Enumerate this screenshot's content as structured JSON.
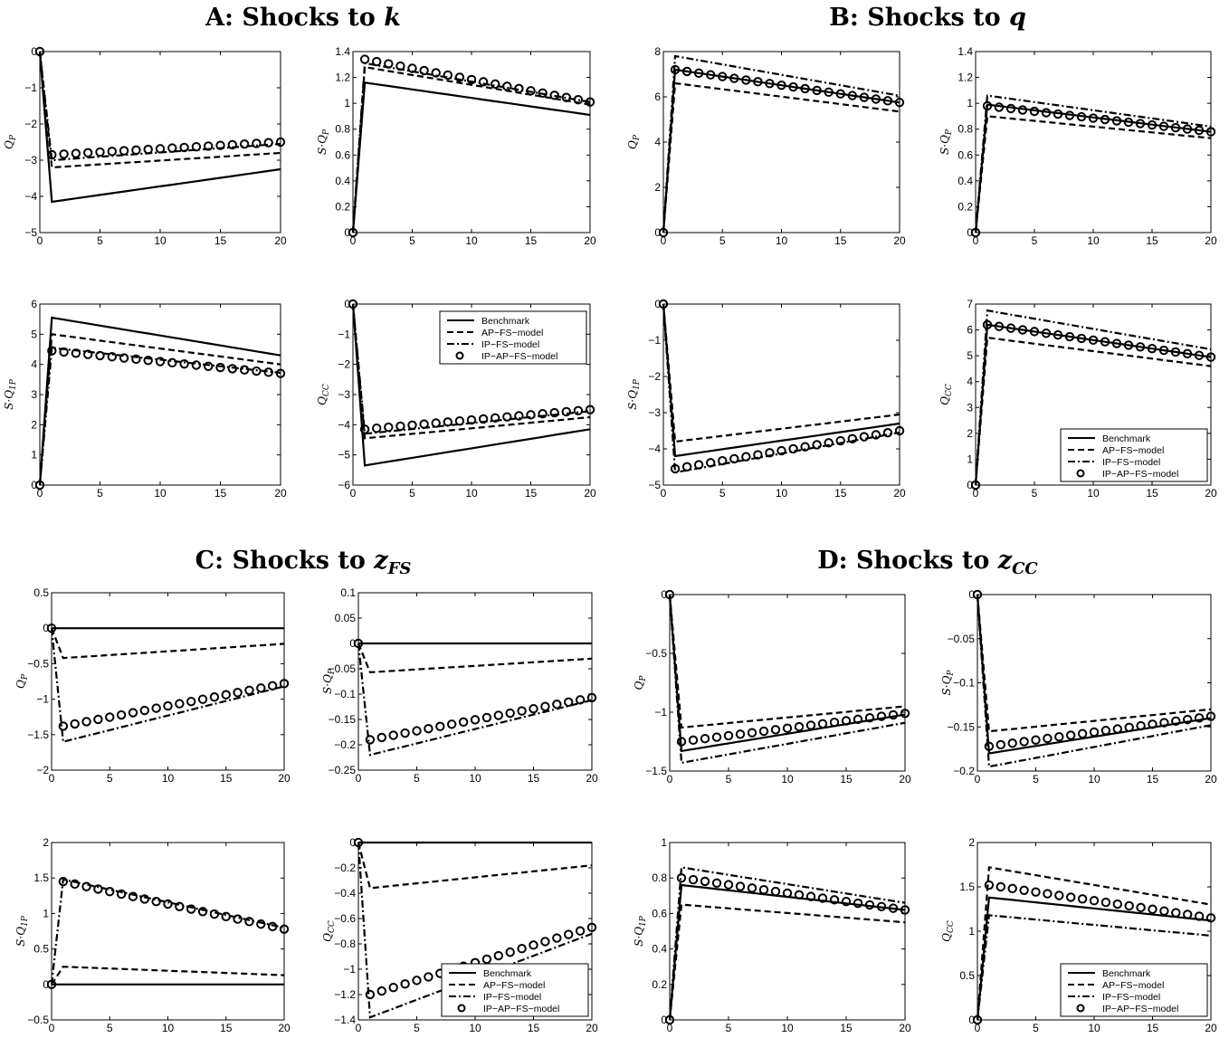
{
  "legend_entries": [
    "Benchmark",
    "AP−FS−model",
    "IP−FS−model",
    "IP−AP−FS−model"
  ],
  "series_styles": [
    {
      "name": "Benchmark",
      "style": "solid"
    },
    {
      "name": "AP−FS−model",
      "style": "dashed"
    },
    {
      "name": "IP−FS−model",
      "style": "dash-dot"
    },
    {
      "name": "IP−AP−FS−model",
      "style": "circles"
    }
  ],
  "colors": {
    "line": "#000000",
    "background": "#ffffff"
  },
  "panel_groups": [
    {
      "id": "A",
      "prefix": "A: Shocks to ",
      "var": "k",
      "sub": ""
    },
    {
      "id": "B",
      "prefix": "B: Shocks to ",
      "var": "q",
      "sub": ""
    },
    {
      "id": "C",
      "prefix": "C: Shocks to ",
      "var": "z",
      "sub": "FS"
    },
    {
      "id": "D",
      "prefix": "D: Shocks to ",
      "var": "z",
      "sub": "CC"
    }
  ],
  "chart_data": [
    {
      "group": "A",
      "type": "line",
      "ylabel": "Q_P",
      "xlim": [
        0,
        20
      ],
      "ylim": [
        -5,
        0
      ],
      "xticks": [
        0,
        5,
        10,
        15,
        20
      ],
      "yticks": [
        -5,
        -4,
        -3,
        -2,
        -1,
        0
      ],
      "legend": null,
      "series": [
        {
          "name": "Benchmark",
          "start": 0,
          "peak": -4.15,
          "end": -3.25
        },
        {
          "name": "AP−FS−model",
          "start": 0,
          "peak": -3.2,
          "end": -2.8
        },
        {
          "name": "IP−FS−model",
          "start": 0,
          "peak": -3.0,
          "end": -2.55
        },
        {
          "name": "IP−AP−FS−model",
          "start": 0,
          "peak": -2.85,
          "end": -2.5
        }
      ]
    },
    {
      "group": "A",
      "type": "line",
      "ylabel": "S·Q_P",
      "xlim": [
        0,
        20
      ],
      "ylim": [
        0,
        1.4
      ],
      "xticks": [
        0,
        5,
        10,
        15,
        20
      ],
      "yticks": [
        0,
        0.2,
        0.4,
        0.6,
        0.8,
        1,
        1.2,
        1.4
      ],
      "legend": null,
      "series": [
        {
          "name": "Benchmark",
          "start": 0,
          "peak": 1.16,
          "end": 0.91
        },
        {
          "name": "AP−FS−model",
          "start": 0,
          "peak": 1.28,
          "end": 0.99
        },
        {
          "name": "IP−FS−model",
          "start": 0,
          "peak": 1.31,
          "end": 1.01
        },
        {
          "name": "IP−AP−FS−model",
          "start": 0,
          "peak": 1.34,
          "end": 1.01
        }
      ]
    },
    {
      "group": "A",
      "type": "line",
      "ylabel": "S·Q_1P",
      "xlim": [
        0,
        20
      ],
      "ylim": [
        0,
        6
      ],
      "xticks": [
        0,
        5,
        10,
        15,
        20
      ],
      "yticks": [
        0,
        1,
        2,
        3,
        4,
        5,
        6
      ],
      "legend": null,
      "series": [
        {
          "name": "Benchmark",
          "start": 0,
          "peak": 5.55,
          "end": 4.3
        },
        {
          "name": "AP−FS−model",
          "start": 0,
          "peak": 5.0,
          "end": 4.0
        },
        {
          "name": "IP−FS−model",
          "start": 0,
          "peak": 4.55,
          "end": 3.72
        },
        {
          "name": "IP−AP−FS−model",
          "start": 0,
          "peak": 4.45,
          "end": 3.7
        }
      ]
    },
    {
      "group": "A",
      "type": "line",
      "ylabel": "Q_CC",
      "xlim": [
        0,
        20
      ],
      "ylim": [
        -6,
        0
      ],
      "xticks": [
        0,
        5,
        10,
        15,
        20
      ],
      "yticks": [
        -6,
        -5,
        -4,
        -3,
        -2,
        -1,
        0
      ],
      "legend": "top-right",
      "series": [
        {
          "name": "Benchmark",
          "start": 0,
          "peak": -5.35,
          "end": -4.15
        },
        {
          "name": "AP−FS−model",
          "start": 0,
          "peak": -4.45,
          "end": -3.75
        },
        {
          "name": "IP−FS−model",
          "start": 0,
          "peak": -4.3,
          "end": -3.55
        },
        {
          "name": "IP−AP−FS−model",
          "start": 0,
          "peak": -4.15,
          "end": -3.5
        }
      ]
    },
    {
      "group": "B",
      "type": "line",
      "ylabel": "Q_P",
      "xlim": [
        0,
        20
      ],
      "ylim": [
        0,
        8
      ],
      "xticks": [
        0,
        5,
        10,
        15,
        20
      ],
      "yticks": [
        0,
        2,
        4,
        6,
        8
      ],
      "legend": null,
      "series": [
        {
          "name": "Benchmark",
          "start": 0,
          "peak": 7.2,
          "end": 5.75
        },
        {
          "name": "AP−FS−model",
          "start": 0,
          "peak": 6.6,
          "end": 5.35
        },
        {
          "name": "IP−FS−model",
          "start": 0,
          "peak": 7.8,
          "end": 6.05
        },
        {
          "name": "IP−AP−FS−model",
          "start": 0,
          "peak": 7.2,
          "end": 5.75
        }
      ]
    },
    {
      "group": "B",
      "type": "line",
      "ylabel": "S·Q_P",
      "xlim": [
        0,
        20
      ],
      "ylim": [
        0,
        1.4
      ],
      "xticks": [
        0,
        5,
        10,
        15,
        20
      ],
      "yticks": [
        0,
        0.2,
        0.4,
        0.6,
        0.8,
        1,
        1.2,
        1.4
      ],
      "legend": null,
      "series": [
        {
          "name": "Benchmark",
          "start": 0,
          "peak": 0.99,
          "end": 0.78
        },
        {
          "name": "AP−FS−model",
          "start": 0,
          "peak": 0.9,
          "end": 0.73
        },
        {
          "name": "IP−FS−model",
          "start": 0,
          "peak": 1.06,
          "end": 0.82
        },
        {
          "name": "IP−AP−FS−model",
          "start": 0,
          "peak": 0.98,
          "end": 0.78
        }
      ]
    },
    {
      "group": "B",
      "type": "line",
      "ylabel": "S·Q_1P",
      "xlim": [
        0,
        20
      ],
      "ylim": [
        -5,
        0
      ],
      "xticks": [
        0,
        5,
        10,
        15,
        20
      ],
      "yticks": [
        -5,
        -4,
        -3,
        -2,
        -1,
        0
      ],
      "legend": null,
      "series": [
        {
          "name": "Benchmark",
          "start": 0,
          "peak": -4.2,
          "end": -3.3
        },
        {
          "name": "AP−FS−model",
          "start": 0,
          "peak": -3.8,
          "end": -3.05
        },
        {
          "name": "IP−FS−model",
          "start": 0,
          "peak": -4.65,
          "end": -3.55
        },
        {
          "name": "IP−AP−FS−model",
          "start": 0,
          "peak": -4.55,
          "end": -3.5
        }
      ]
    },
    {
      "group": "B",
      "type": "line",
      "ylabel": "Q_CC",
      "xlim": [
        0,
        20
      ],
      "ylim": [
        0,
        7
      ],
      "xticks": [
        0,
        5,
        10,
        15,
        20
      ],
      "yticks": [
        0,
        1,
        2,
        3,
        4,
        5,
        6,
        7
      ],
      "legend": "bottom-right",
      "series": [
        {
          "name": "Benchmark",
          "start": 0,
          "peak": 6.2,
          "end": 4.95
        },
        {
          "name": "AP−FS−model",
          "start": 0,
          "peak": 5.7,
          "end": 4.6
        },
        {
          "name": "IP−FS−model",
          "start": 0,
          "peak": 6.75,
          "end": 5.25
        },
        {
          "name": "IP−AP−FS−model",
          "start": 0,
          "peak": 6.2,
          "end": 4.95
        }
      ]
    },
    {
      "group": "C",
      "type": "line",
      "ylabel": "Q_P",
      "xlim": [
        0,
        20
      ],
      "ylim": [
        -2,
        0.5
      ],
      "xticks": [
        0,
        5,
        10,
        15,
        20
      ],
      "yticks": [
        -2,
        -1.5,
        -1,
        -0.5,
        0,
        0.5
      ],
      "legend": null,
      "series": [
        {
          "name": "Benchmark",
          "start": 0,
          "peak": 0,
          "end": 0
        },
        {
          "name": "AP−FS−model",
          "start": 0,
          "peak": -0.42,
          "end": -0.22
        },
        {
          "name": "IP−FS−model",
          "start": 0,
          "peak": -1.6,
          "end": -0.82
        },
        {
          "name": "IP−AP−FS−model",
          "start": 0,
          "peak": -1.38,
          "end": -0.78
        }
      ]
    },
    {
      "group": "C",
      "type": "line",
      "ylabel": "S·Q_P",
      "xlim": [
        0,
        20
      ],
      "ylim": [
        -0.25,
        0.1
      ],
      "xticks": [
        0,
        5,
        10,
        15,
        20
      ],
      "yticks": [
        -0.25,
        -0.2,
        -0.15,
        -0.1,
        -0.05,
        0,
        0.05,
        0.1
      ],
      "legend": null,
      "series": [
        {
          "name": "Benchmark",
          "start": 0,
          "peak": 0,
          "end": 0
        },
        {
          "name": "AP−FS−model",
          "start": 0,
          "peak": -0.057,
          "end": -0.03
        },
        {
          "name": "IP−FS−model",
          "start": 0,
          "peak": -0.22,
          "end": -0.112
        },
        {
          "name": "IP−AP−FS−model",
          "start": 0,
          "peak": -0.19,
          "end": -0.107
        }
      ]
    },
    {
      "group": "C",
      "type": "line",
      "ylabel": "S·Q_1P",
      "xlim": [
        0,
        20
      ],
      "ylim": [
        -0.5,
        2
      ],
      "xticks": [
        0,
        5,
        10,
        15,
        20
      ],
      "yticks": [
        -0.5,
        0,
        0.5,
        1,
        1.5,
        2
      ],
      "legend": null,
      "series": [
        {
          "name": "Benchmark",
          "start": 0,
          "peak": 0,
          "end": 0
        },
        {
          "name": "AP−FS−model",
          "start": 0,
          "peak": 0.25,
          "end": 0.13
        },
        {
          "name": "IP−FS−model",
          "start": 0,
          "peak": 1.48,
          "end": 0.8
        },
        {
          "name": "IP−AP−FS−model",
          "start": 0,
          "peak": 1.45,
          "end": 0.78
        }
      ]
    },
    {
      "group": "C",
      "type": "line",
      "ylabel": "Q_CC",
      "xlim": [
        0,
        20
      ],
      "ylim": [
        -1.4,
        0
      ],
      "xticks": [
        0,
        5,
        10,
        15,
        20
      ],
      "yticks": [
        -1.4,
        -1.2,
        -1,
        -0.8,
        -0.6,
        -0.4,
        -0.2,
        0
      ],
      "legend": "bottom-right",
      "series": [
        {
          "name": "Benchmark",
          "start": 0,
          "peak": 0,
          "end": 0
        },
        {
          "name": "AP−FS−model",
          "start": 0,
          "peak": -0.36,
          "end": -0.18
        },
        {
          "name": "IP−FS−model",
          "start": 0,
          "peak": -1.38,
          "end": -0.72
        },
        {
          "name": "IP−AP−FS−model",
          "start": 0,
          "peak": -1.2,
          "end": -0.67
        }
      ]
    },
    {
      "group": "D",
      "type": "line",
      "ylabel": "Q_P",
      "xlim": [
        0,
        20
      ],
      "ylim": [
        -1.5,
        0
      ],
      "xticks": [
        0,
        5,
        10,
        15,
        20
      ],
      "yticks": [
        -1.5,
        -1,
        -0.5,
        0
      ],
      "legend": null,
      "series": [
        {
          "name": "Benchmark",
          "start": 0,
          "peak": -1.33,
          "end": -1.02
        },
        {
          "name": "AP−FS−model",
          "start": 0,
          "peak": -1.13,
          "end": -0.95
        },
        {
          "name": "IP−FS−model",
          "start": 0,
          "peak": -1.43,
          "end": -1.09
        },
        {
          "name": "IP−AP−FS−model",
          "start": 0,
          "peak": -1.25,
          "end": -1.01
        }
      ]
    },
    {
      "group": "D",
      "type": "line",
      "ylabel": "S·Q_P",
      "xlim": [
        0,
        20
      ],
      "ylim": [
        -0.2,
        0
      ],
      "xticks": [
        0,
        5,
        10,
        15,
        20
      ],
      "yticks": [
        -0.2,
        -0.15,
        -0.1,
        -0.05,
        0
      ],
      "legend": null,
      "series": [
        {
          "name": "Benchmark",
          "start": 0,
          "peak": -0.18,
          "end": -0.14
        },
        {
          "name": "AP−FS−model",
          "start": 0,
          "peak": -0.155,
          "end": -0.13
        },
        {
          "name": "IP−FS−model",
          "start": 0,
          "peak": -0.195,
          "end": -0.148
        },
        {
          "name": "IP−AP−FS−model",
          "start": 0,
          "peak": -0.172,
          "end": -0.138
        }
      ]
    },
    {
      "group": "D",
      "type": "line",
      "ylabel": "S·Q_1P",
      "xlim": [
        0,
        20
      ],
      "ylim": [
        0,
        1
      ],
      "xticks": [
        0,
        5,
        10,
        15,
        20
      ],
      "yticks": [
        0,
        0.2,
        0.4,
        0.6,
        0.8,
        1
      ],
      "legend": null,
      "series": [
        {
          "name": "Benchmark",
          "start": 0,
          "peak": 0.76,
          "end": 0.62
        },
        {
          "name": "AP−FS−model",
          "start": 0,
          "peak": 0.65,
          "end": 0.55
        },
        {
          "name": "IP−FS−model",
          "start": 0,
          "peak": 0.86,
          "end": 0.66
        },
        {
          "name": "IP−AP−FS−model",
          "start": 0,
          "peak": 0.8,
          "end": 0.62
        }
      ]
    },
    {
      "group": "D",
      "type": "line",
      "ylabel": "Q_CC",
      "xlim": [
        0,
        20
      ],
      "ylim": [
        0,
        2
      ],
      "xticks": [
        0,
        5,
        10,
        15,
        20
      ],
      "yticks": [
        0,
        0.5,
        1,
        1.5,
        2
      ],
      "legend": "bottom-right",
      "series": [
        {
          "name": "Benchmark",
          "start": 0,
          "peak": 1.38,
          "end": 1.12
        },
        {
          "name": "AP−FS−model",
          "start": 0,
          "peak": 1.72,
          "end": 1.3
        },
        {
          "name": "IP−FS−model",
          "start": 0,
          "peak": 1.18,
          "end": 0.95
        },
        {
          "name": "IP−AP−FS−model",
          "start": 0,
          "peak": 1.52,
          "end": 1.15
        }
      ]
    }
  ]
}
